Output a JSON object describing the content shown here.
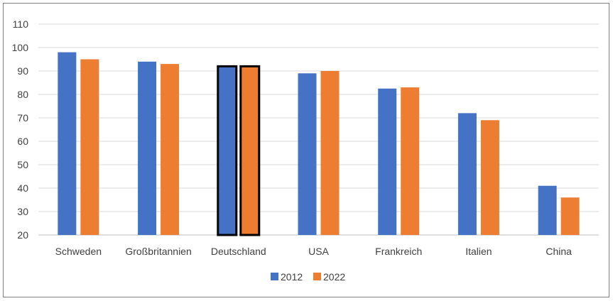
{
  "chart_data": {
    "type": "bar",
    "title": "",
    "xlabel": "",
    "ylabel": "",
    "categories": [
      "Schweden",
      "Großbritannien",
      "Deutschland",
      "USA",
      "Frankreich",
      "Italien",
      "China"
    ],
    "series": [
      {
        "name": "2012",
        "values": [
          98,
          94,
          92,
          89,
          82.5,
          72,
          41
        ],
        "color": "#4472C4"
      },
      {
        "name": "2022",
        "values": [
          95,
          93,
          92,
          90,
          83,
          69,
          36
        ],
        "color": "#ED7D31"
      }
    ],
    "ylim": [
      20,
      110
    ],
    "yticks": [
      20,
      30,
      40,
      50,
      60,
      70,
      80,
      90,
      100,
      110
    ],
    "grid": true,
    "legend_position": "bottom",
    "highlighted_category": "Deutschland"
  }
}
